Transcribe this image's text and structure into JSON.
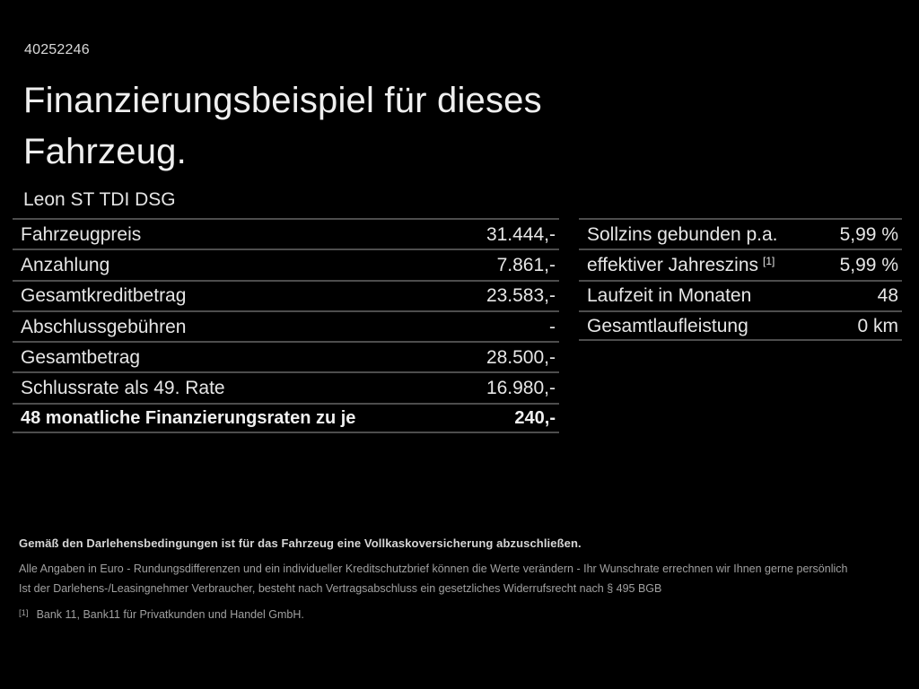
{
  "page": {
    "ref_number": "40252246",
    "title_line1": "Finanzierungsbeispiel für dieses",
    "title_line2": "Fahrzeug.",
    "model": "Leon ST TDI DSG"
  },
  "finance_table": {
    "rows": [
      {
        "label": "Fahrzeugpreis",
        "value": "31.444,-"
      },
      {
        "label": "Anzahlung",
        "value": "7.861,-"
      },
      {
        "label": "Gesamtkreditbetrag",
        "value": "23.583,-"
      },
      {
        "label": "Abschlussgebühren",
        "value": "-"
      },
      {
        "label": "Gesamtbetrag",
        "value": "28.500,-"
      },
      {
        "label": "Schlussrate als 49. Rate",
        "value": "16.980,-"
      },
      {
        "label": "48 monatliche Finanzierungsraten zu je",
        "value": "240,-"
      }
    ]
  },
  "conditions_table": {
    "rows": [
      {
        "label": "Sollzins gebunden p.a.",
        "value": "5,99 %"
      },
      {
        "label": "effektiver Jahreszins",
        "footnote_marker": "[1]",
        "value": "5,99 %"
      },
      {
        "label": "Laufzeit in Monaten",
        "value": "48"
      },
      {
        "label": "Gesamtlaufleistung",
        "value": "0 km"
      }
    ]
  },
  "footer": {
    "insurance_note": "Gemäß den Darlehensbedingungen ist für das Fahrzeug eine Vollkaskoversicherung abzuschließen.",
    "disclaimer_line1": "Alle Angaben in Euro - Rundungsdifferenzen und ein individueller Kreditschutzbrief können die Werte verändern - Ihr Wunschrate errechnen wir Ihnen gerne persönlich",
    "disclaimer_line2": "Ist der Darlehens-/Leasingnehmer Verbraucher, besteht nach Vertragsabschluss ein gesetzliches Widerrufsrecht nach § 495 BGB",
    "footnote_marker": "[1]",
    "footnote_text": "Bank 11, Bank11 für Privatkunden und Handel GmbH."
  },
  "colors": {
    "background": "#000000",
    "text_primary": "#e8e8e8",
    "text_secondary": "#a0a0a0",
    "divider": "#4d4d4d"
  }
}
